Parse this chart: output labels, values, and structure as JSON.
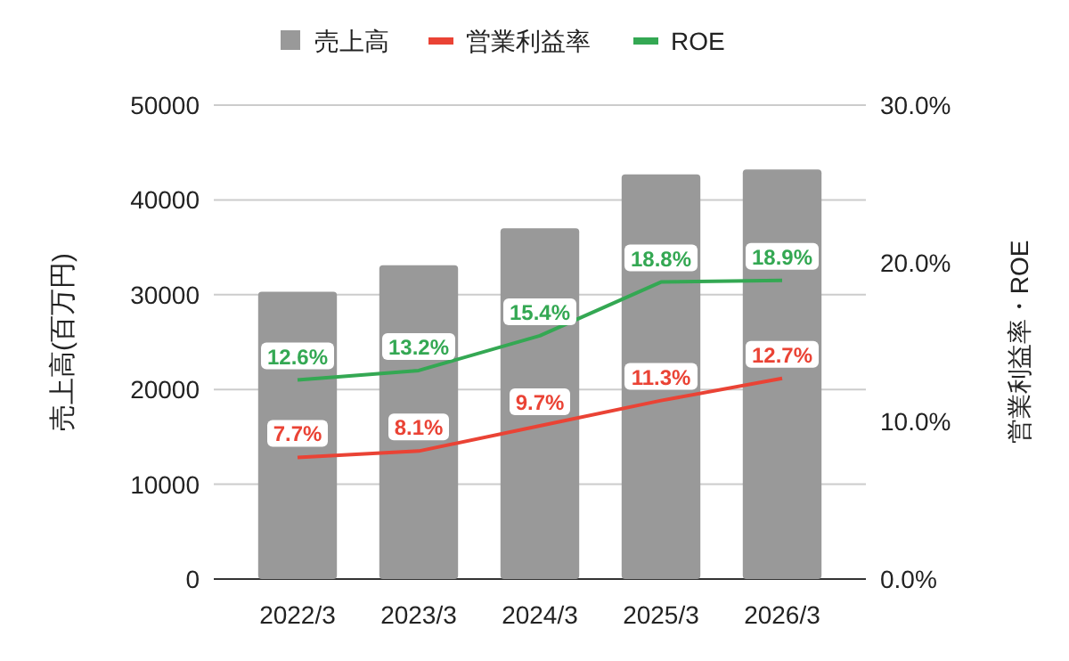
{
  "chart_data": {
    "type": "bar",
    "ylabel": "売上高(百万円)",
    "y2label": "営業利益率・ROE",
    "categories": [
      "2022/3",
      "2023/3",
      "2024/3",
      "2025/3",
      "2026/3"
    ],
    "series": [
      {
        "name": "売上高",
        "color": "#999999",
        "values": [
          30300,
          33100,
          37000,
          42700,
          43200
        ]
      },
      {
        "name": "営業利益率",
        "type": "line",
        "axis": "y2",
        "color": "#ea4335",
        "values": [
          7.7,
          8.1,
          9.7,
          11.3,
          12.7
        ],
        "value_labels": [
          "7.7%",
          "8.1%",
          "9.7%",
          "11.3%",
          "12.7%"
        ]
      },
      {
        "name": "ROE",
        "type": "line",
        "axis": "y2",
        "color": "#34a853",
        "values": [
          12.6,
          13.2,
          15.4,
          18.8,
          18.9
        ],
        "value_labels": [
          "12.6%",
          "13.2%",
          "15.4%",
          "18.8%",
          "18.9%"
        ]
      }
    ],
    "ylim": [
      0,
      50000
    ],
    "yticks": [
      0,
      10000,
      20000,
      30000,
      40000,
      50000
    ],
    "y2lim": [
      0,
      30
    ],
    "y2ticks": [
      {
        "value": 0,
        "label": "0.0%"
      },
      {
        "value": 10,
        "label": "10.0%"
      },
      {
        "value": 20,
        "label": "20.0%"
      },
      {
        "value": 30,
        "label": "30.0%"
      }
    ],
    "grid": "y",
    "legend": "top"
  }
}
